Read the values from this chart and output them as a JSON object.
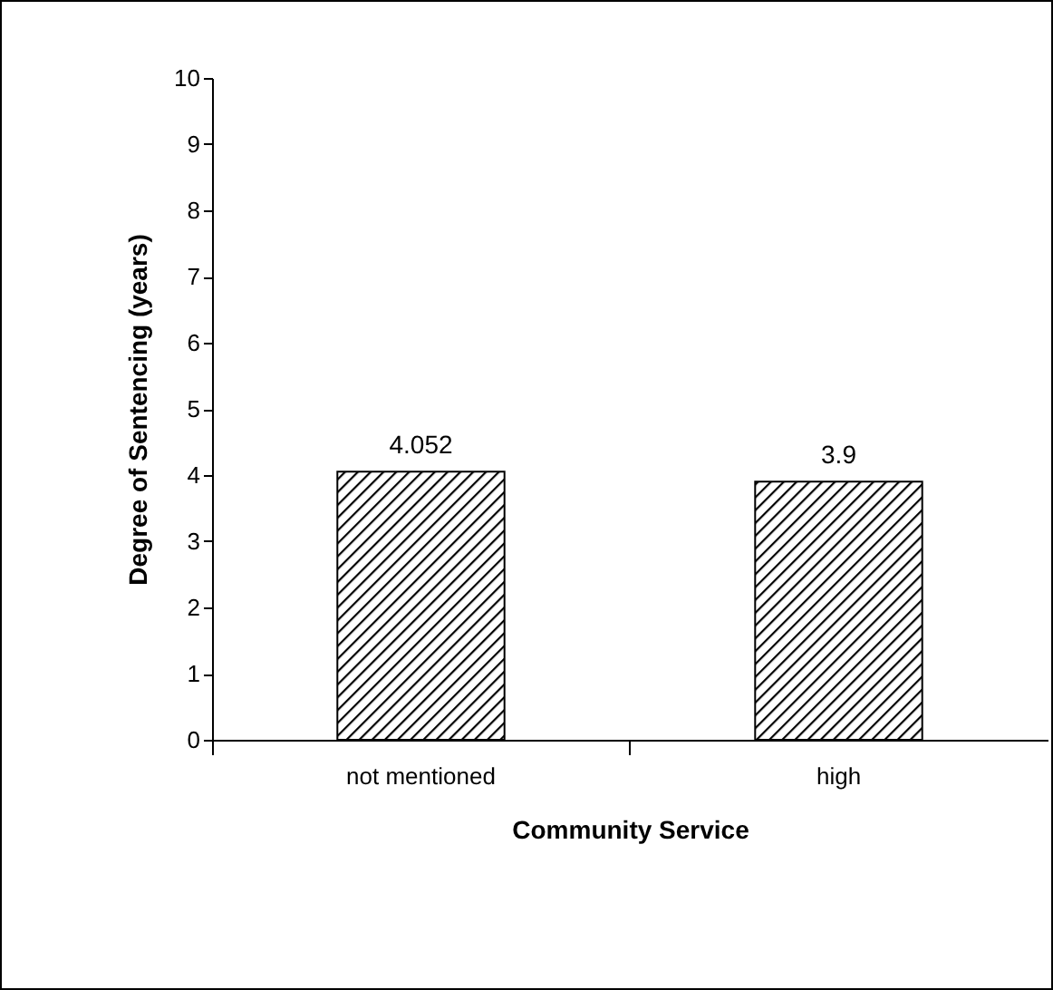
{
  "chart_data": {
    "type": "bar",
    "xlabel": "Community Service",
    "ylabel": "Degree of Sentencing (years)",
    "categories": [
      "not mentioned",
      "high"
    ],
    "values": [
      4.052,
      3.9
    ],
    "color": "#000000",
    "ylim": [
      0,
      10
    ],
    "yticks": [
      0,
      1,
      2,
      3,
      4,
      5,
      6,
      7,
      8,
      9,
      10
    ],
    "grid": false,
    "data_labels": true
  }
}
